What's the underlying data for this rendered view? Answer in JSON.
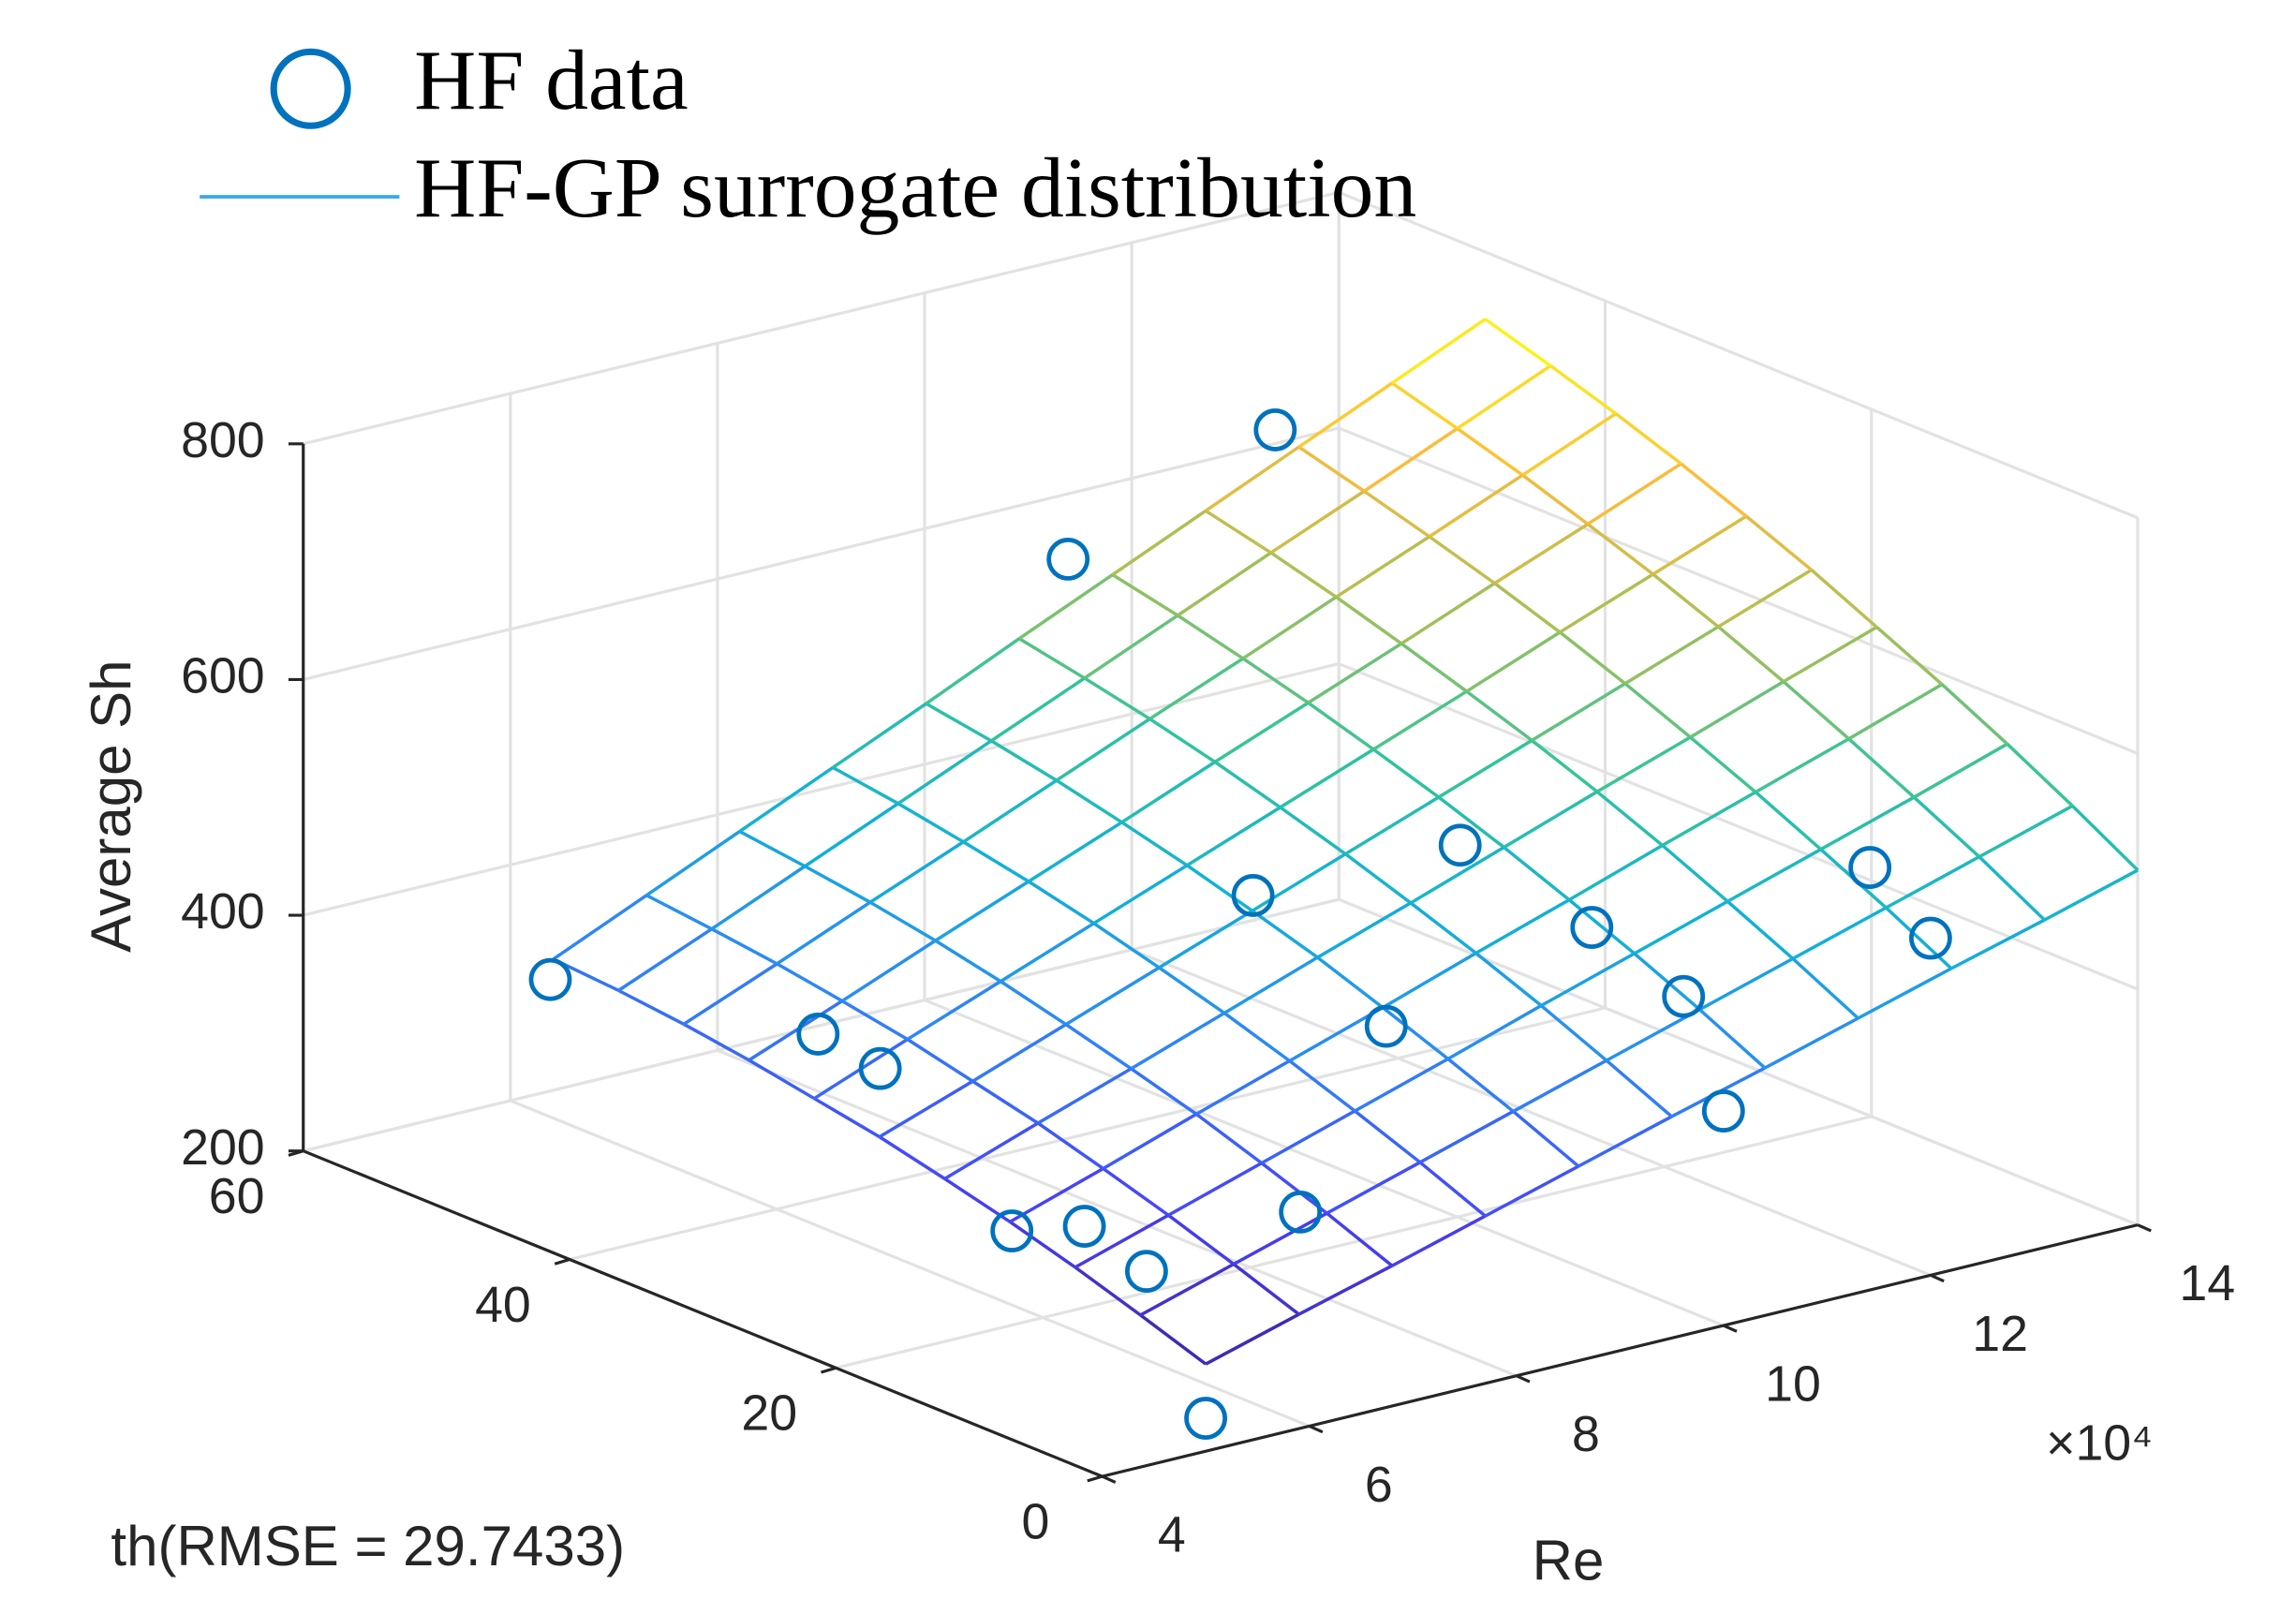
{
  "chart_data": {
    "type": "surface3d",
    "xlabel": "Re",
    "zlabel": "Average Sh",
    "x_multiplier": "×10⁴",
    "annotation": "th(RMSE = 29.7433)",
    "xlim": [
      4,
      14
    ],
    "ylim": [
      0,
      60
    ],
    "zlim": [
      200,
      800
    ],
    "xticks": [
      4,
      6,
      8,
      10,
      12,
      14
    ],
    "yticks": [
      0,
      20,
      40,
      60
    ],
    "zticks": [
      200,
      400,
      600,
      800
    ],
    "grid": true,
    "series": [
      {
        "name": "HF data",
        "type": "scatter",
        "color": "#0072bd",
        "x": [
          5.1,
          6.4,
          7.0,
          5.7,
          6.4,
          7.0,
          5.0,
          7.2,
          10.6,
          10.6,
          12.6,
          10.1,
          12.1,
          11.3,
          10.9,
          10.0,
          12.7,
          12.0
        ],
        "y": [
          50,
          40,
          40,
          20,
          20,
          20,
          0,
          10,
          40,
          30,
          40,
          50,
          50,
          20,
          10,
          0,
          10,
          0
        ],
        "z": [
          368,
          340,
          298,
          280,
          269,
          218,
          228,
          310,
          368,
          303,
          368,
          618,
          685,
          418,
          414,
          382,
          485,
          486
        ]
      },
      {
        "name": "HF-GP surrogate distribution",
        "type": "surface",
        "color": "#3fa9e8",
        "colormap": [
          "#3e26a8",
          "#4743f8",
          "#2f86f5",
          "#12b1d6",
          "#32c49a",
          "#a2bf5a",
          "#fcbc3c",
          "#f9fb15"
        ],
        "x": [
          5,
          5.9,
          6.8,
          7.7,
          8.6,
          9.5,
          10.4,
          11.3,
          12.2,
          13.1,
          14
        ],
        "y": [
          0,
          4.9,
          9.8,
          14.7,
          19.6,
          24.5,
          29.4,
          34.3,
          39.2,
          44.1,
          49
        ],
        "z": [
          [
            274,
            297,
            319,
            342,
            365,
            388,
            410,
            433,
            456,
            478,
            501
          ],
          [
            293,
            317,
            341,
            365,
            389,
            413,
            437,
            461,
            485,
            509,
            533
          ],
          [
            311,
            336,
            361,
            386,
            411,
            437,
            462,
            487,
            512,
            537,
            563
          ],
          [
            327,
            353,
            380,
            406,
            432,
            459,
            485,
            512,
            538,
            564,
            591
          ],
          [
            341,
            369,
            396,
            424,
            452,
            479,
            507,
            535,
            562,
            590,
            617
          ],
          [
            354,
            382,
            411,
            440,
            469,
            498,
            527,
            556,
            585,
            614,
            643
          ],
          [
            364,
            395,
            425,
            455,
            485,
            515,
            545,
            575,
            606,
            636,
            666
          ],
          [
            374,
            405,
            437,
            468,
            499,
            531,
            562,
            593,
            625,
            656,
            688
          ],
          [
            382,
            414,
            447,
            479,
            512,
            545,
            577,
            610,
            642,
            675,
            708
          ],
          [
            388,
            421,
            455,
            489,
            523,
            557,
            591,
            625,
            658,
            692,
            726
          ],
          [
            392,
            427,
            462,
            497,
            532,
            568,
            603,
            638,
            673,
            708,
            743
          ]
        ]
      }
    ]
  }
}
